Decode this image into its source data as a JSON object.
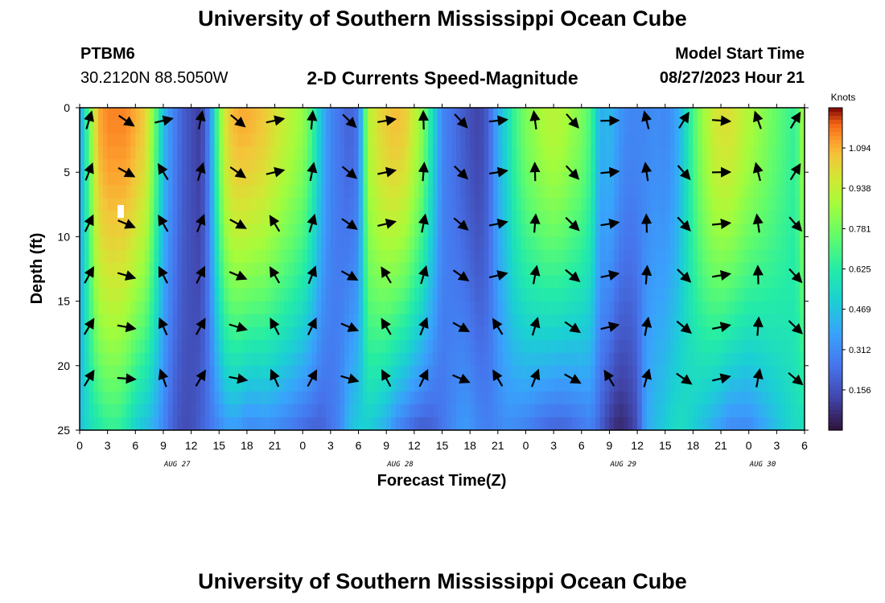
{
  "header": {
    "title": "University of Southern Mississippi Ocean Cube",
    "station": "PTBM6",
    "coords": "30.2120N  88.5050W",
    "subtitle": "2-D Currents Speed-Magnitude",
    "model_start_label": "Model Start Time",
    "model_start_value": "08/27/2023 Hour 21",
    "footer_title": "University of Southern Mississippi Ocean Cube"
  },
  "chart_data": {
    "type": "heatmap",
    "title": "2-D Currents Speed-Magnitude",
    "xlabel": "Forecast Time(Z)",
    "ylabel": "Depth (ft)",
    "x_range_hours": [
      0,
      78
    ],
    "ylim": [
      25,
      0
    ],
    "x_tick_labels": [
      "0",
      "3",
      "6",
      "9",
      "12",
      "15",
      "18",
      "21",
      "0",
      "3",
      "6",
      "9",
      "12",
      "15",
      "18",
      "21",
      "0",
      "3",
      "6",
      "9",
      "12",
      "15",
      "18",
      "21",
      "0",
      "3",
      "6"
    ],
    "y_tick_values": [
      0,
      5,
      10,
      15,
      20,
      25
    ],
    "y_tick_labels": [
      "0",
      "5",
      "10",
      "15",
      "20",
      "25"
    ],
    "day_labels": [
      {
        "text": "AUG 27",
        "hour": 10.5
      },
      {
        "text": "AUG 28",
        "hour": 34.5
      },
      {
        "text": "AUG 29",
        "hour": 58.5
      },
      {
        "text": "AUG 30",
        "hour": 73.5
      }
    ],
    "colorbar": {
      "label": "Knots",
      "ticks": [
        1.094,
        0.938,
        0.781,
        0.625,
        0.469,
        0.312,
        0.156
      ],
      "tick_labels": [
        "1.094",
        "0.938",
        "0.781",
        "0.625",
        "0.469",
        "0.312",
        "0.156"
      ],
      "vmin": 0.0,
      "vmax": 1.25
    },
    "speed_profile_keys": {
      "hours": [
        0,
        1,
        2,
        3,
        4,
        5,
        6,
        7,
        8,
        9,
        10,
        11,
        12,
        13,
        14,
        15,
        16,
        17,
        18,
        19,
        20,
        21,
        22,
        23,
        24,
        25,
        26,
        27,
        28,
        29,
        30,
        31,
        32,
        33,
        34,
        35,
        36,
        37,
        38,
        39,
        40,
        41,
        42,
        43,
        44,
        45,
        46,
        47,
        48,
        49,
        50,
        51,
        52,
        53,
        54,
        55,
        56,
        57,
        58,
        59,
        60,
        61,
        62,
        63,
        64,
        65,
        66,
        67,
        68,
        69,
        70,
        71,
        72,
        73,
        74,
        75,
        76,
        77,
        78
      ],
      "surface_knots": [
        0.35,
        0.75,
        1.1,
        1.15,
        1.15,
        1.15,
        1.1,
        1.05,
        0.8,
        0.45,
        0.3,
        0.2,
        0.15,
        0.1,
        0.3,
        0.8,
        1.05,
        1.1,
        1.1,
        1.08,
        1.05,
        1.0,
        0.95,
        0.9,
        0.85,
        0.7,
        0.45,
        0.3,
        0.25,
        0.2,
        0.25,
        0.9,
        1.0,
        1.05,
        1.08,
        1.05,
        0.95,
        0.8,
        0.55,
        0.3,
        0.25,
        0.2,
        0.15,
        0.12,
        0.2,
        0.4,
        0.55,
        0.7,
        0.8,
        0.85,
        0.9,
        0.92,
        0.9,
        0.85,
        0.8,
        0.7,
        0.4,
        0.45,
        0.35,
        0.3,
        0.3,
        0.3,
        0.32,
        0.3,
        0.35,
        0.5,
        0.7,
        0.85,
        0.95,
        1.0,
        1.0,
        0.95,
        0.9,
        0.85,
        0.8,
        0.75,
        0.7,
        0.65,
        0.9
      ],
      "bottom_knots": [
        0.45,
        0.55,
        0.6,
        0.65,
        0.65,
        0.6,
        0.5,
        0.45,
        0.4,
        0.3,
        0.2,
        0.15,
        0.15,
        0.2,
        0.25,
        0.3,
        0.35,
        0.35,
        0.3,
        0.3,
        0.32,
        0.3,
        0.28,
        0.25,
        0.22,
        0.2,
        0.2,
        0.25,
        0.3,
        0.45,
        0.5,
        0.5,
        0.45,
        0.4,
        0.3,
        0.25,
        0.2,
        0.18,
        0.2,
        0.25,
        0.3,
        0.35,
        0.35,
        0.3,
        0.28,
        0.3,
        0.32,
        0.3,
        0.28,
        0.25,
        0.22,
        0.2,
        0.2,
        0.22,
        0.25,
        0.28,
        0.2,
        0.1,
        0.05,
        0.08,
        0.15,
        0.4,
        0.45,
        0.5,
        0.55,
        0.55,
        0.5,
        0.45,
        0.4,
        0.35,
        0.3,
        0.3,
        0.3,
        0.35,
        0.4,
        0.45,
        0.5,
        0.55,
        0.55
      ]
    }
  }
}
